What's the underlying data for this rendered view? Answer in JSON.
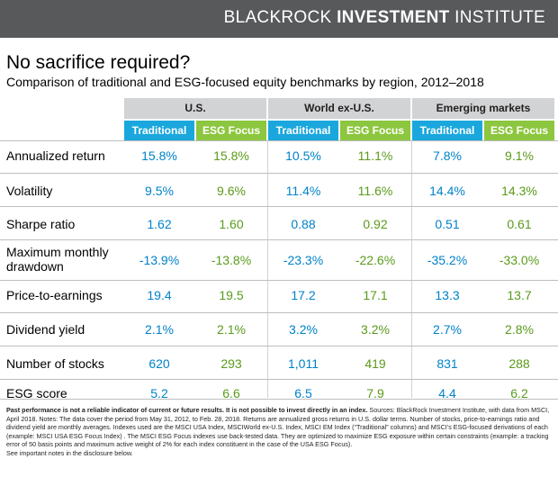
{
  "brand": {
    "light": "BLACKROCK ",
    "bold": "INVESTMENT",
    "light2": " INSTITUTE"
  },
  "title": "No sacrifice required?",
  "subtitle": "Comparison of traditional and ESG-focused equity benchmarks by region, 2012–2018",
  "regions": [
    "U.S.",
    "World ex-U.S.",
    "Emerging markets"
  ],
  "column_labels": {
    "traditional": "Traditional",
    "esg": "ESG Focus"
  },
  "rows": [
    {
      "label": "Annualized return",
      "values": [
        "15.8%",
        "15.8%",
        "10.5%",
        "11.1%",
        "7.8%",
        "9.1%"
      ]
    },
    {
      "label": "Volatility",
      "values": [
        "9.5%",
        "9.6%",
        "11.4%",
        "11.6%",
        "14.4%",
        "14.3%"
      ]
    },
    {
      "label": "Sharpe ratio",
      "values": [
        "1.62",
        "1.60",
        "0.88",
        "0.92",
        "0.51",
        "0.61"
      ]
    },
    {
      "label": "Maximum monthly drawdown",
      "label_line1": "Maximum monthly",
      "label_line2": "drawdown",
      "values": [
        "-13.9%",
        "-13.8%",
        "-23.3%",
        "-22.6%",
        "-35.2%",
        "-33.0%"
      ]
    },
    {
      "label": "Price-to-earnings",
      "values": [
        "19.4",
        "19.5",
        "17.2",
        "17.1",
        "13.3",
        "13.7"
      ]
    },
    {
      "label": "Dividend yield",
      "values": [
        "2.1%",
        "2.1%",
        "3.2%",
        "3.2%",
        "2.7%",
        "2.8%"
      ]
    },
    {
      "label": "Number of stocks",
      "values": [
        "620",
        "293",
        "1,011",
        "419",
        "831",
        "288"
      ]
    },
    {
      "label": "ESG score",
      "values": [
        "5.2",
        "6.6",
        "6.5",
        "7.9",
        "4.4",
        "6.2"
      ]
    }
  ],
  "footnote": {
    "bold": "Past performance is not a reliable indicator of current or future results. It is not possible to invest directly in an index.",
    "text": " Sources: BlackRock Investment Institute, with data from MSCI, April 2018. Notes: The data cover the period from May 31, 2012, to Feb. 28, 2018. Returns are annualized gross returns in U.S. dollar terms. Number of stocks, price-to-earnings ratio and dividend yield are monthly averages. Indexes used are the MSCI USA Index, MSCIWorld ex-U.S. Index, MSCI EM Index (“Traditional” columns) and MSCI’s ESG-focused derivations of each (example: MSCI USA ESG Focus Index) . The MSCI ESG Focus indexes use back-tested data. They are optimized to maximize ESG exposure within certain constraints (example: a tracking error of 50 basis points and maximum active weight of 2% for each index constituent in the case of the USA ESG Focus).",
    "note": "See important notes in the disclosure below."
  },
  "colors": {
    "brand_bar": "#58595b",
    "traditional": "#1aa7dd",
    "esg": "#8dc63f",
    "region_header": "#d1d3d4"
  }
}
